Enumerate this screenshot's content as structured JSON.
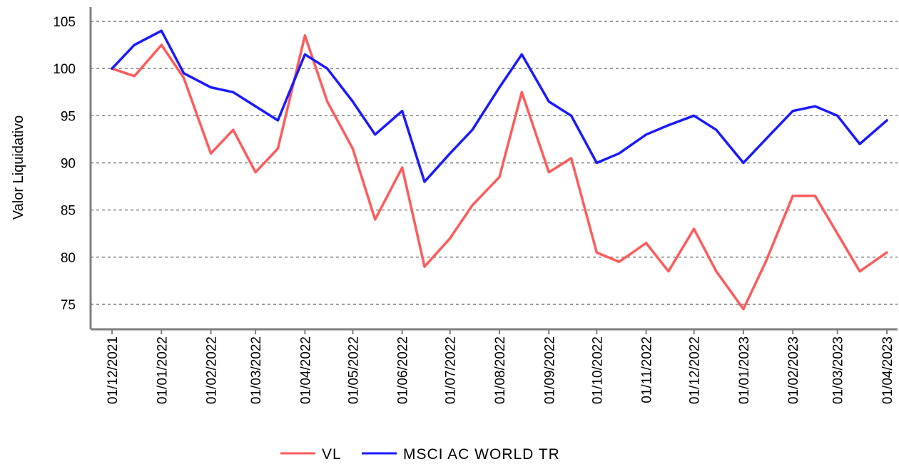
{
  "chart_data": {
    "type": "line",
    "title": "",
    "xlabel": "",
    "ylabel": "Valor Liquidativo",
    "ylim": [
      71.5,
      106.5
    ],
    "yticks": [
      75,
      80,
      85,
      90,
      95,
      100,
      105
    ],
    "grid": true,
    "legend_position": "bottom-center",
    "x_ticks": [
      "01/12/2021",
      "01/01/2022",
      "01/02/2022",
      "01/03/2022",
      "01/04/2022",
      "01/05/2022",
      "01/06/2022",
      "01/07/2022",
      "01/08/2022",
      "01/09/2022",
      "01/10/2022",
      "01/11/2022",
      "01/12/2022",
      "01/01/2023",
      "01/02/2023",
      "01/03/2023",
      "01/04/2023"
    ],
    "x": [
      "2021-12-01",
      "2021-12-15",
      "2022-01-01",
      "2022-01-15",
      "2022-02-01",
      "2022-02-15",
      "2022-03-01",
      "2022-03-15",
      "2022-04-01",
      "2022-04-15",
      "2022-05-01",
      "2022-05-15",
      "2022-06-01",
      "2022-06-15",
      "2022-07-01",
      "2022-07-15",
      "2022-08-01",
      "2022-08-15",
      "2022-09-01",
      "2022-09-15",
      "2022-10-01",
      "2022-10-15",
      "2022-11-01",
      "2022-11-15",
      "2022-12-01",
      "2022-12-15",
      "2023-01-01",
      "2023-01-15",
      "2023-02-01",
      "2023-02-15",
      "2023-03-01",
      "2023-03-15",
      "2023-04-01"
    ],
    "series": [
      {
        "name": "VL",
        "color": "#ff5b5b",
        "values": [
          100.0,
          99.2,
          102.5,
          99.0,
          91.0,
          93.5,
          89.0,
          91.5,
          103.5,
          96.5,
          91.5,
          84.0,
          89.5,
          79.0,
          82.0,
          85.5,
          88.5,
          97.5,
          89.0,
          90.5,
          80.5,
          79.5,
          81.5,
          78.5,
          83.0,
          78.5,
          74.5,
          79.5,
          86.5,
          86.5,
          82.5,
          78.5,
          80.5
        ]
      },
      {
        "name": "MSCI AC WORLD TR",
        "color": "#1a1aff",
        "values": [
          100.0,
          102.5,
          104.0,
          99.5,
          98.0,
          97.5,
          96.0,
          94.5,
          101.5,
          100.0,
          96.5,
          93.0,
          95.5,
          88.0,
          91.0,
          93.5,
          98.0,
          101.5,
          96.5,
          95.0,
          90.0,
          91.0,
          93.0,
          94.0,
          95.0,
          93.5,
          90.0,
          92.5,
          95.5,
          96.0,
          95.0,
          92.0,
          94.5
        ]
      }
    ]
  }
}
